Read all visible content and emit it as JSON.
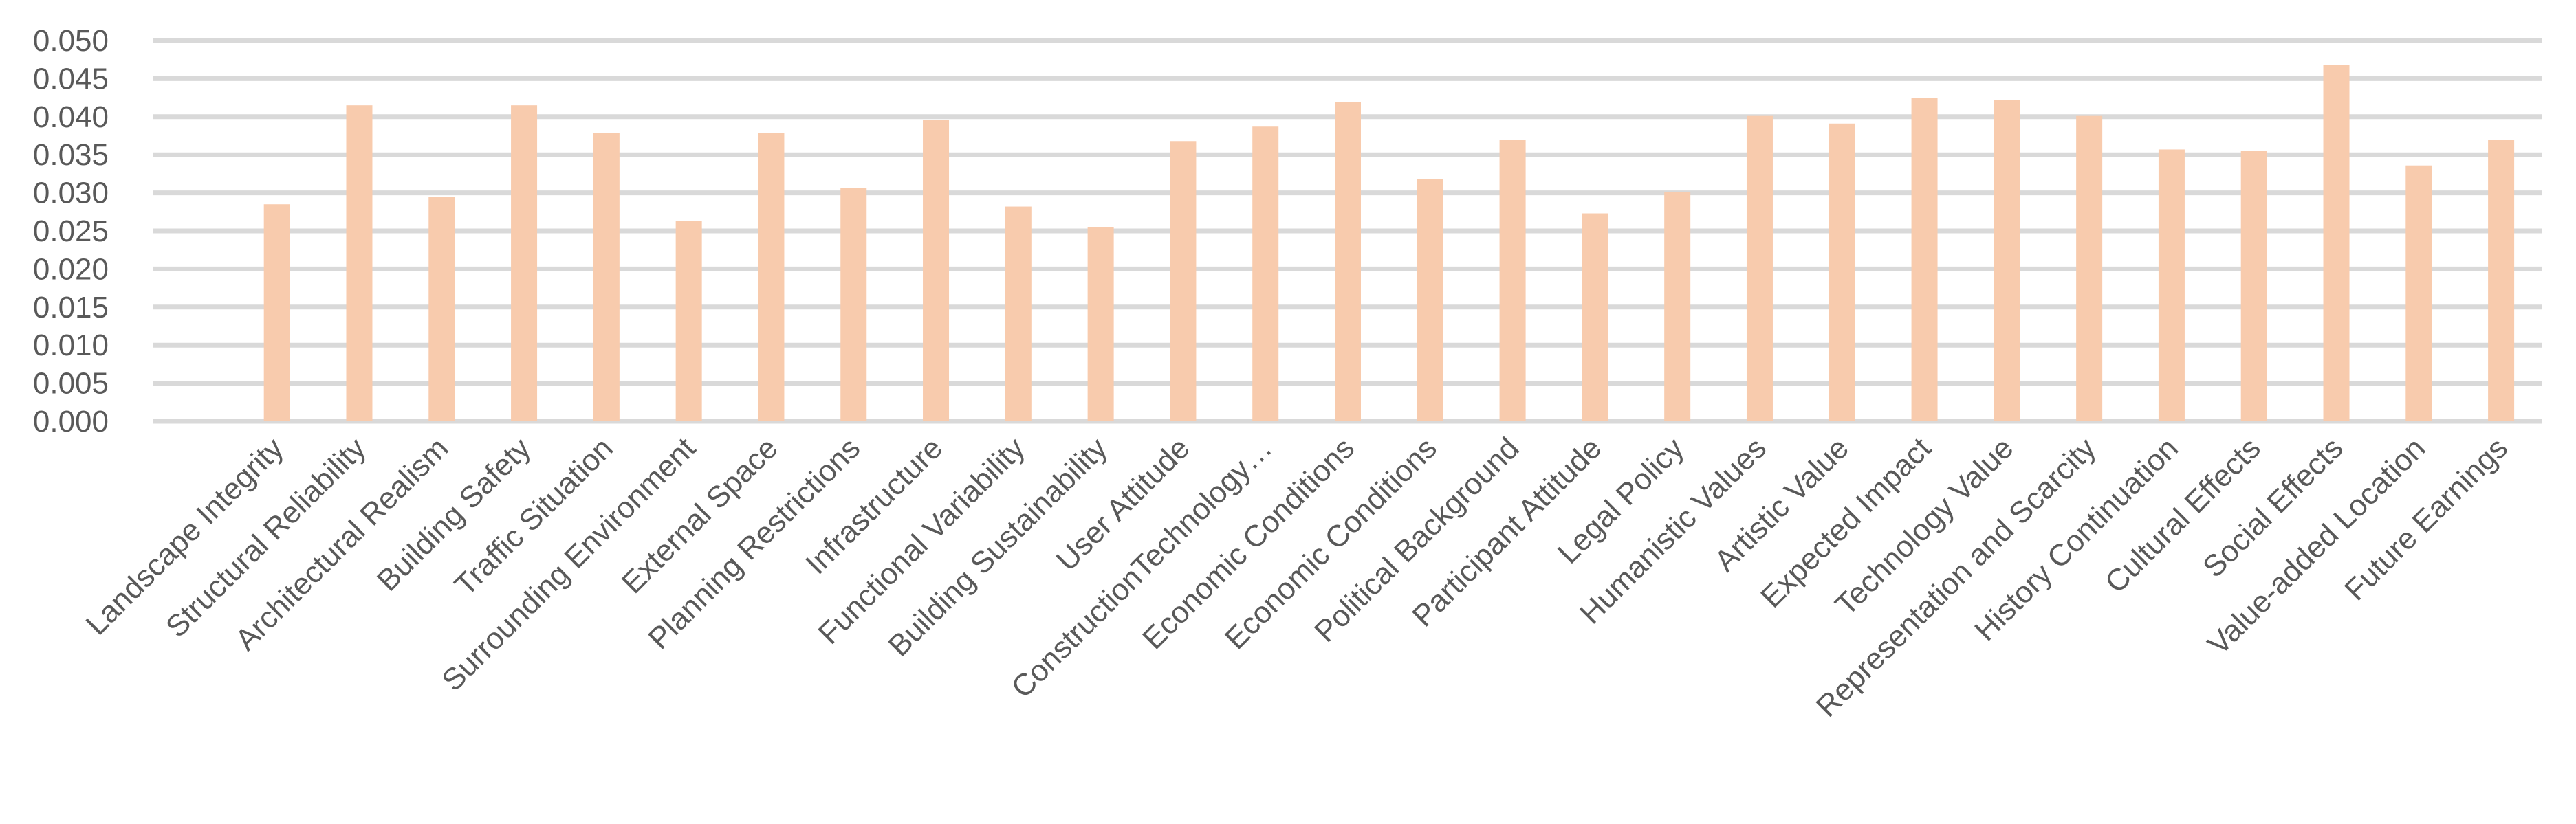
{
  "chart_data": {
    "type": "bar",
    "title": "",
    "xlabel": "",
    "ylabel": "",
    "ylim": [
      0,
      0.05
    ],
    "ytick_step": 0.005,
    "yticks": [
      "0.000",
      "0.005",
      "0.010",
      "0.015",
      "0.020",
      "0.025",
      "0.030",
      "0.035",
      "0.040",
      "0.045",
      "0.050"
    ],
    "grid": true,
    "legend": "none",
    "bar_color": "#f8cbad",
    "grid_color": "#d9d9d9",
    "text_color": "#595959",
    "categories": [
      "",
      "Landscape Integrity",
      "Structural Reliability",
      "Architectural Realism",
      "Building Safety",
      "Traffic Situation",
      "Surrounding Environment",
      "External Space",
      "Planning Restrictions",
      "Infrastructure",
      "Functional Variability",
      "Building Sustainability",
      "User Attitude",
      "ConstructionTechnology…",
      "Economic Conditions",
      "Economic Conditions",
      "Political Background",
      "Participant Attitude",
      "Legal Policy",
      "Humanistic Values",
      "Artistic Value",
      "Expected Impact",
      "Technology Value",
      "Representation and Scarcity",
      "History Continuation",
      "Cultural Effects",
      "Social Effects",
      "Value-added Location",
      "Future Earnings"
    ],
    "values": [
      null,
      0.0285,
      0.0415,
      0.0295,
      0.0415,
      0.0379,
      0.0263,
      0.0379,
      0.0306,
      0.0396,
      0.0282,
      0.0255,
      0.0368,
      0.0387,
      0.0419,
      0.0318,
      0.037,
      0.0273,
      0.0301,
      0.0401,
      0.0391,
      0.0425,
      0.0422,
      0.0401,
      0.0357,
      0.0355,
      0.0468,
      0.0336,
      0.037
    ]
  }
}
